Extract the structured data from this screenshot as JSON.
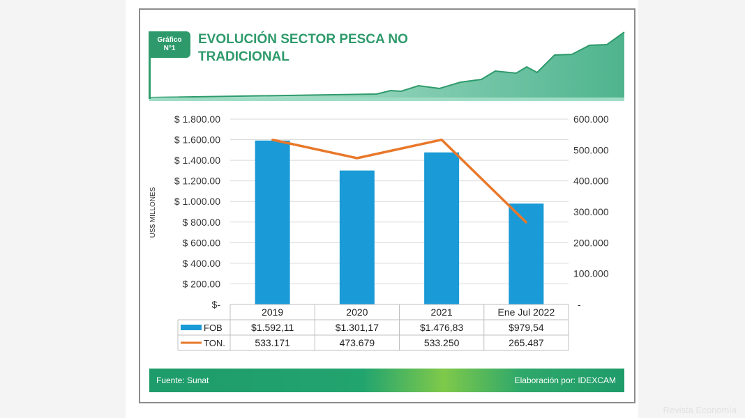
{
  "header": {
    "badge_line1": "Gráfico",
    "badge_line2": "N°1",
    "title": "EVOLUCIÓN SECTOR PESCA NO TRADICIONAL"
  },
  "chart_data": {
    "type": "bar",
    "categories": [
      "2019",
      "2020",
      "2021",
      "Ene Jul 2022"
    ],
    "series": [
      {
        "name": "FOB",
        "kind": "bar",
        "axis": "left",
        "color": "#1a9ad6",
        "values": [
          1592.11,
          1301.17,
          1476.83,
          979.54
        ],
        "table_labels": [
          "$1.592,11",
          "$1.301,17",
          "$1.476,83",
          "$979,54"
        ]
      },
      {
        "name": "TON.",
        "kind": "line",
        "axis": "right",
        "color": "#e8782a",
        "values": [
          533171,
          473679,
          533250,
          265487
        ],
        "table_labels": [
          "533.171",
          "473.679",
          "533.250",
          "265.487"
        ]
      }
    ],
    "ylabel": "US$ MILLONES",
    "ylim": [
      0,
      1800
    ],
    "y2lim": [
      0,
      600000
    ],
    "yticks": [
      0,
      200,
      400,
      600,
      800,
      1000,
      1200,
      1400,
      1600,
      1800
    ],
    "ytick_labels": [
      "$-",
      "$ 200.00",
      "$ 400.00",
      "$ 600.00",
      "$ 800.00",
      "$ 1.000.00",
      "$ 1.200.00",
      "$ 1.400.00",
      "$ 1.600.00",
      "$ 1.800.00"
    ],
    "y2ticks": [
      0,
      100000,
      200000,
      300000,
      400000,
      500000,
      600000
    ],
    "y2tick_labels": [
      "-",
      "100.000",
      "200.000",
      "300.000",
      "400.000",
      "500.000",
      "600.000"
    ],
    "grid": true,
    "legend": "data-table"
  },
  "footer": {
    "source": "Fuente: Sunat",
    "credit": "Elaboración por: IDEXCAM"
  },
  "watermark": "Revista Economía"
}
